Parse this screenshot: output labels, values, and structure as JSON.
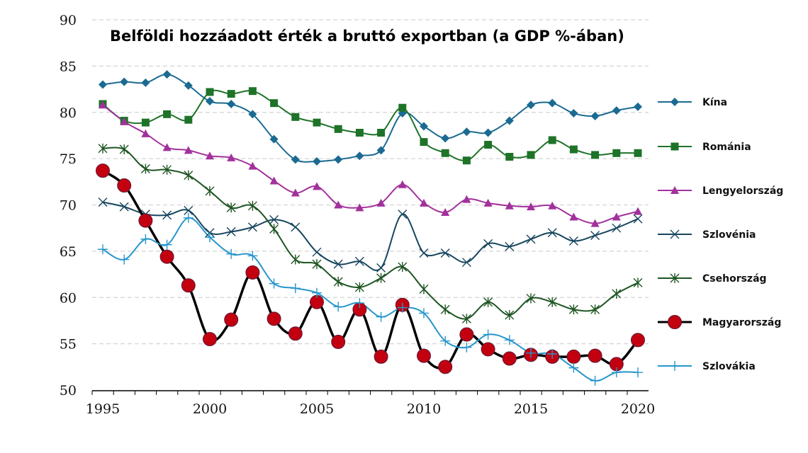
{
  "chart_data": {
    "type": "line",
    "title": "Belföldi hozzáadott érték a bruttó exportban (a GDP %-ában)",
    "xlabel": "",
    "ylabel": "",
    "xlim": [
      1995,
      2020
    ],
    "ylim": [
      50,
      90
    ],
    "yticks": [
      50,
      55,
      60,
      65,
      70,
      75,
      80,
      85,
      90
    ],
    "xticks": [
      1995,
      2000,
      2005,
      2010,
      2015,
      2020
    ],
    "grid": "horizontal dashed",
    "legend_position": "right",
    "x": [
      1995,
      1996,
      1997,
      1998,
      1999,
      2000,
      2001,
      2002,
      2003,
      2004,
      2005,
      2006,
      2007,
      2008,
      2009,
      2010,
      2011,
      2012,
      2013,
      2014,
      2015,
      2016,
      2017,
      2018,
      2019,
      2020
    ],
    "series": [
      {
        "name": "Kína",
        "color": "#1b6a92",
        "marker": "diamond",
        "values": [
          83.0,
          83.3,
          83.2,
          84.1,
          82.9,
          81.2,
          80.9,
          79.8,
          77.1,
          74.9,
          74.7,
          74.9,
          75.3,
          75.9,
          79.9,
          78.5,
          77.2,
          77.9,
          77.8,
          79.1,
          80.8,
          81.0,
          79.9,
          79.6,
          80.2,
          80.6
        ]
      },
      {
        "name": "Románia",
        "color": "#1e7328",
        "marker": "square",
        "values": [
          80.9,
          79.1,
          78.9,
          79.8,
          79.2,
          82.2,
          82.0,
          82.3,
          81.0,
          79.5,
          78.9,
          78.2,
          77.8,
          77.8,
          80.5,
          76.8,
          75.6,
          74.8,
          76.5,
          75.2,
          75.4,
          77.0,
          76.0,
          75.4,
          75.6,
          75.6
        ]
      },
      {
        "name": "Lengyelország",
        "color": "#a2319c",
        "marker": "triangle",
        "values": [
          80.8,
          79.0,
          77.7,
          76.2,
          75.9,
          75.3,
          75.1,
          74.2,
          72.6,
          71.3,
          72.0,
          70.0,
          69.7,
          70.2,
          72.2,
          70.2,
          69.2,
          70.6,
          70.2,
          69.9,
          69.8,
          69.9,
          68.7,
          68.0,
          68.7,
          69.3
        ]
      },
      {
        "name": "Szlovénia",
        "color": "#17465e",
        "marker": "x",
        "values": [
          70.3,
          69.8,
          69.0,
          68.9,
          69.4,
          67.0,
          67.1,
          67.6,
          68.4,
          67.6,
          64.9,
          63.6,
          63.9,
          63.2,
          69.0,
          64.8,
          64.8,
          63.8,
          65.8,
          65.5,
          66.3,
          67.0,
          66.1,
          66.7,
          67.5,
          68.5
        ]
      },
      {
        "name": "Csehország",
        "color": "#1e5522",
        "marker": "star",
        "values": [
          76.1,
          76.0,
          73.9,
          73.8,
          73.2,
          71.5,
          69.7,
          69.9,
          67.4,
          64.1,
          63.6,
          61.7,
          61.1,
          62.1,
          63.3,
          60.9,
          58.7,
          57.7,
          59.5,
          58.1,
          59.9,
          59.5,
          58.7,
          58.7,
          60.4,
          61.6
        ]
      },
      {
        "name": "Magyarország",
        "color": "#000000",
        "marker_color": "#c3000f",
        "marker": "circle",
        "values": [
          73.7,
          72.1,
          68.3,
          64.4,
          61.3,
          55.5,
          57.6,
          62.7,
          57.7,
          56.1,
          59.5,
          55.2,
          58.7,
          53.6,
          59.2,
          53.7,
          52.5,
          56.0,
          54.4,
          53.4,
          53.8,
          53.6,
          53.6,
          53.7,
          52.8,
          55.4
        ]
      },
      {
        "name": "Szlovákia",
        "color": "#2796cc",
        "marker": "plus",
        "values": [
          65.2,
          64.1,
          66.3,
          65.7,
          68.6,
          66.5,
          64.7,
          64.5,
          61.5,
          61.0,
          60.5,
          59.0,
          59.4,
          57.9,
          58.9,
          58.3,
          55.3,
          54.6,
          56.0,
          55.4,
          54.0,
          53.9,
          52.4,
          51.0,
          51.9,
          51.9
        ]
      }
    ]
  }
}
